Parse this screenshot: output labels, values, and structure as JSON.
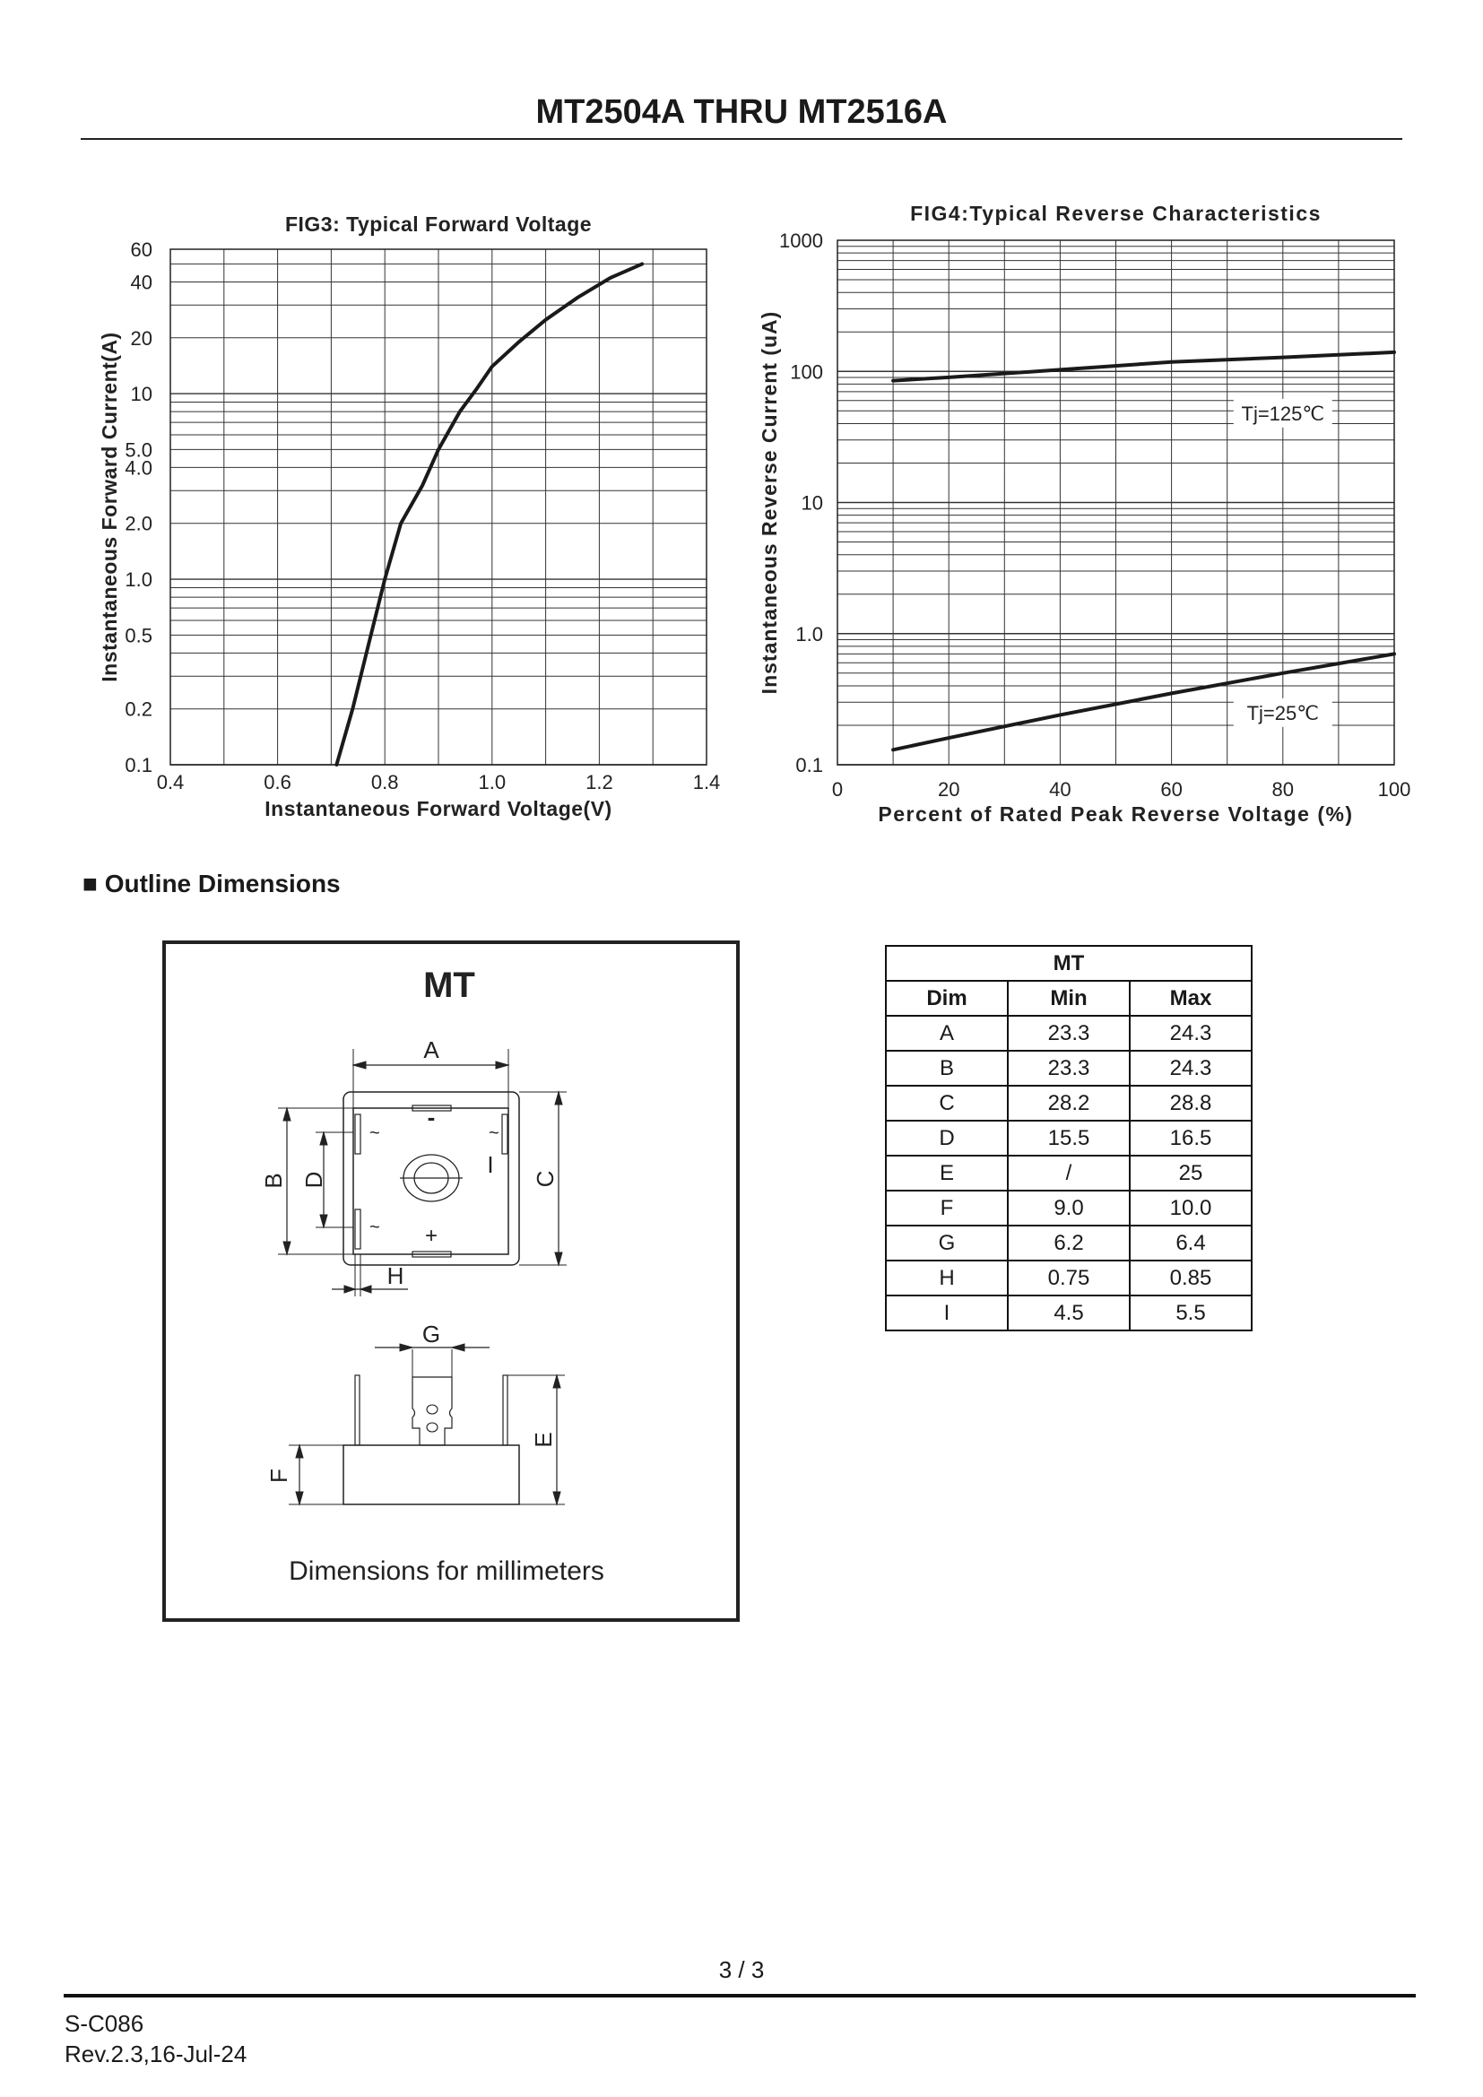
{
  "header": {
    "title": "MT2504A THRU MT2516A"
  },
  "chart_data": [
    {
      "type": "line",
      "title": "FIG3: Typical Forward Voltage",
      "xlabel": "Instantaneous Forward Voltage(V)",
      "ylabel": "Instantaneous Forward Current(A)",
      "xlim": [
        0.4,
        1.4
      ],
      "ylim": [
        0.1,
        60
      ],
      "yscale": "log",
      "grid": true,
      "xticks": [
        "0.4",
        "0.6",
        "0.8",
        "1.0",
        "1.2",
        "1.4"
      ],
      "yticks": [
        "0.1",
        "0.2",
        "0.5",
        "1.0",
        "2.0",
        "4.0",
        "5.0",
        "10",
        "20",
        "40",
        "60"
      ],
      "series": [
        {
          "x": [
            0.71,
            0.74,
            0.77,
            0.8,
            0.83,
            0.87,
            0.9,
            0.94,
            0.97,
            1.0,
            1.05,
            1.1,
            1.16,
            1.22,
            1.28
          ],
          "y": [
            0.1,
            0.2,
            0.45,
            1.0,
            2.0,
            3.2,
            5.0,
            8.0,
            10.5,
            14,
            19,
            25,
            33,
            42,
            50
          ]
        }
      ],
      "color": "#1a1a1a"
    },
    {
      "type": "line",
      "title": "FIG4:Typical Reverse Characteristics",
      "xlabel": "Percent of Rated Peak Reverse Voltage  (%)",
      "ylabel": "Instantaneous Reverse Current (uA)",
      "xlim": [
        0,
        100
      ],
      "ylim": [
        0.1,
        1000
      ],
      "yscale": "log",
      "grid": true,
      "xticks": [
        "0",
        "20",
        "40",
        "60",
        "80",
        "100"
      ],
      "yticks": [
        "0.1",
        "1.0",
        "10",
        "100",
        "1000"
      ],
      "series": [
        {
          "name": "Tj=125℃",
          "x": [
            10,
            20,
            40,
            60,
            80,
            100
          ],
          "y": [
            85,
            90,
            103,
            118,
            128,
            140
          ],
          "label_at": [
            80,
            48
          ]
        },
        {
          "name": "Tj=25℃",
          "x": [
            10,
            20,
            40,
            60,
            80,
            100
          ],
          "y": [
            0.13,
            0.16,
            0.24,
            0.35,
            0.5,
            0.7
          ],
          "label_at": [
            80,
            0.25
          ]
        }
      ],
      "color": "#1a1a1a"
    }
  ],
  "outline": {
    "heading": "■ Outline Dimensions",
    "package": "MT",
    "labels": {
      "A": "A",
      "B": "B",
      "C": "C",
      "D": "D",
      "E": "E",
      "F": "F",
      "G": "G",
      "H": "H",
      "I": "I"
    },
    "pin_marks": {
      "ac": "~",
      "neg": "-",
      "pos": "+"
    },
    "caption": "Dimensions for millimeters"
  },
  "table": {
    "group": "MT",
    "headers": [
      "Dim",
      "Min",
      "Max"
    ],
    "rows": [
      [
        "A",
        "23.3",
        "24.3"
      ],
      [
        "B",
        "23.3",
        "24.3"
      ],
      [
        "C",
        "28.2",
        "28.8"
      ],
      [
        "D",
        "15.5",
        "16.5"
      ],
      [
        "E",
        "/",
        "25"
      ],
      [
        "F",
        "9.0",
        "10.0"
      ],
      [
        "G",
        "6.2",
        "6.4"
      ],
      [
        "H",
        "0.75",
        "0.85"
      ],
      [
        "I",
        "4.5",
        "5.5"
      ]
    ]
  },
  "footer": {
    "page": "3 / 3",
    "code": "S-C086",
    "rev": "Rev.2.3,16-Jul-24"
  }
}
